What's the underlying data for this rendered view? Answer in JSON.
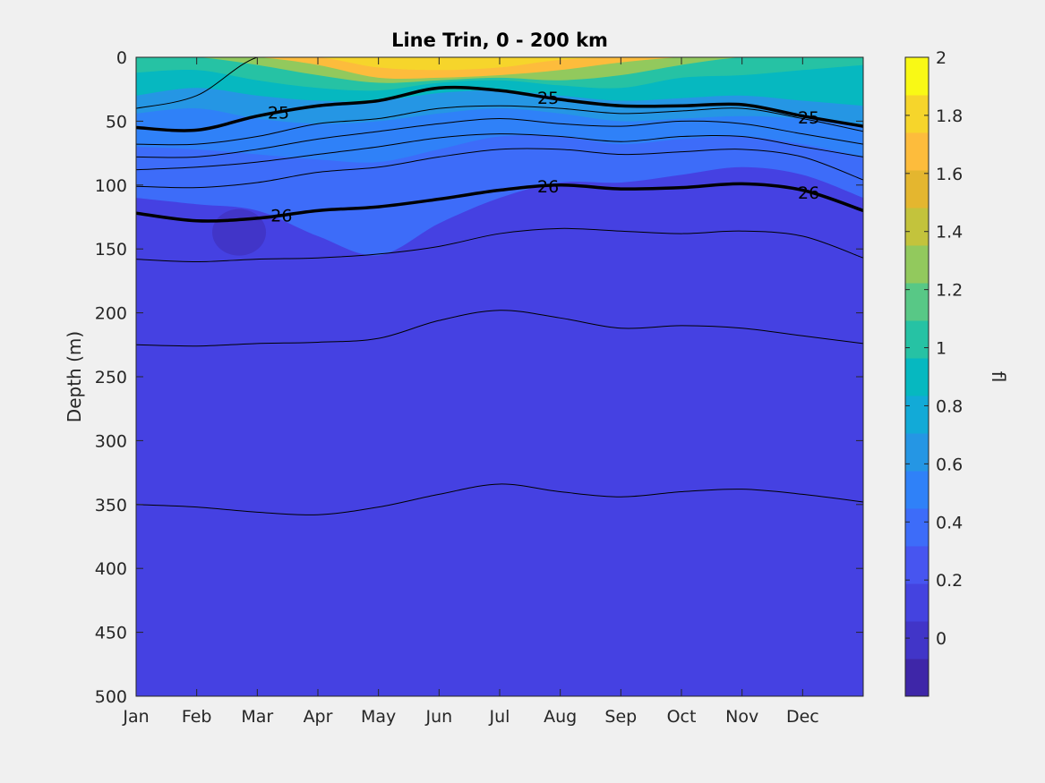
{
  "chart_data": {
    "type": "contour",
    "title": "Line Trin, 0 - 200 km",
    "ylabel": "Depth (m)",
    "xlabel": "",
    "x_categories": [
      "Jan",
      "Feb",
      "Mar",
      "Apr",
      "May",
      "Jun",
      "Jul",
      "Aug",
      "Sep",
      "Oct",
      "Nov",
      "Dec"
    ],
    "ylim": [
      0,
      500
    ],
    "y_reversed": true,
    "yticks": [
      0,
      50,
      100,
      150,
      200,
      250,
      300,
      350,
      400,
      450,
      500
    ],
    "colorbar": {
      "label": "fl",
      "clim": [
        -0.2,
        2
      ],
      "ticks": [
        0,
        0.2,
        0.4,
        0.6,
        0.8,
        1,
        1.2,
        1.4,
        1.6,
        1.8,
        2
      ],
      "tick_labels": [
        "0",
        "0.2",
        "0.4",
        "0.6",
        "0.8",
        "1",
        "1.2",
        "1.4",
        "1.6",
        "1.8",
        "2"
      ],
      "colors": [
        "#3e26a8",
        "#4135c8",
        "#4443e0",
        "#4755f0",
        "#3d6cf9",
        "#2f81f8",
        "#2596e4",
        "#12aad7",
        "#06b8c0",
        "#26c2a4",
        "#58c886",
        "#92c95d",
        "#c3c33c",
        "#e4b62f",
        "#fdbc3c",
        "#f6d52b",
        "#f9f915"
      ]
    },
    "fill_regions": [
      {
        "level": 0.9,
        "description_value": "surface band 0-20 m most months"
      },
      {
        "level": 1.8,
        "peak_months": [
          "May",
          "Jun",
          "Jul"
        ],
        "peak_depth_m": 10
      },
      {
        "level": 0.05,
        "deep_value": true
      }
    ],
    "isopycnals": {
      "labeled": [
        {
          "label": "25",
          "depths": [
            55,
            57,
            46,
            38,
            34,
            24,
            26,
            33,
            38,
            38,
            37,
            46,
            54
          ]
        },
        {
          "label": "26",
          "depths": [
            122,
            128,
            126,
            120,
            117,
            111,
            104,
            100,
            103,
            102,
            99,
            104,
            120
          ]
        }
      ],
      "thin_lines_depths": [
        [
          40,
          30,
          0,
          0,
          0,
          0,
          0,
          0,
          0,
          0,
          0,
          0,
          0
        ],
        [
          68,
          68,
          62,
          52,
          48,
          40,
          38,
          40,
          44,
          42,
          40,
          48,
          58
        ],
        [
          78,
          78,
          72,
          64,
          58,
          52,
          48,
          52,
          54,
          50,
          52,
          60,
          68
        ],
        [
          88,
          86,
          82,
          76,
          70,
          63,
          60,
          62,
          66,
          62,
          62,
          70,
          78
        ],
        [
          101,
          102,
          98,
          90,
          86,
          78,
          72,
          72,
          76,
          74,
          72,
          78,
          96
        ],
        [
          158,
          160,
          158,
          157,
          154,
          148,
          138,
          134,
          136,
          138,
          136,
          140,
          157
        ],
        [
          225,
          226,
          224,
          223,
          220,
          206,
          198,
          204,
          212,
          210,
          212,
          218,
          224
        ],
        [
          350,
          352,
          356,
          358,
          352,
          342,
          334,
          340,
          344,
          340,
          338,
          342,
          348
        ]
      ]
    },
    "contour_labels": [
      "25",
      "25",
      "25",
      "26",
      "26",
      "26"
    ]
  }
}
